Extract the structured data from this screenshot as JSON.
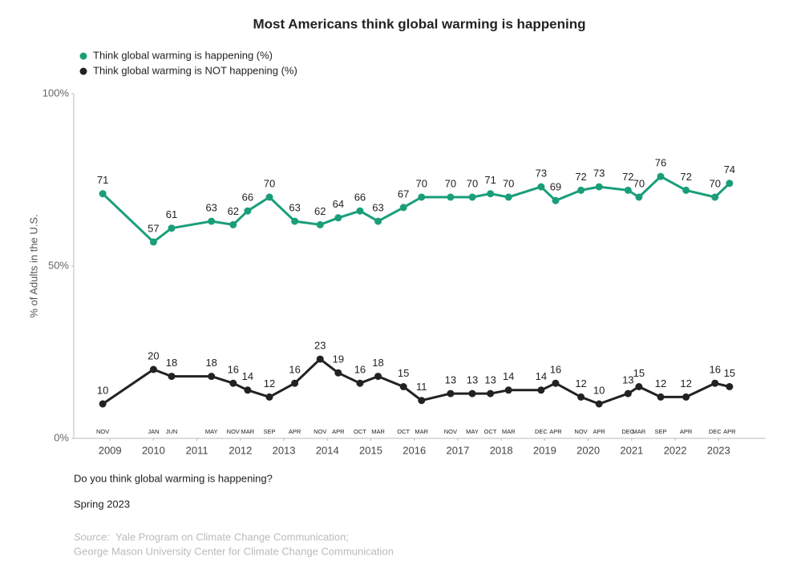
{
  "chart_data": {
    "type": "line",
    "title": "Most Americans think global warming is happening",
    "y_label": "% of Adults in the U.S.",
    "x": [
      "2008-11",
      "2010-01",
      "2010-06",
      "2011-05",
      "2011-11",
      "2012-03",
      "2012-09",
      "2013-04",
      "2013-11",
      "2014-04",
      "2014-10",
      "2015-03",
      "2015-10",
      "2016-03",
      "2016-11",
      "2017-05",
      "2017-10",
      "2018-03",
      "2018-12",
      "2019-04",
      "2019-11",
      "2020-04",
      "2020-12",
      "2021-03",
      "2021-09",
      "2022-04",
      "2022-12",
      "2023-04"
    ],
    "x_labels": [
      "NOV",
      "JAN",
      "JUN",
      "MAY",
      "NOV",
      "MAR",
      "SEP",
      "APR",
      "NOV",
      "APR",
      "OCT",
      "MAR",
      "OCT",
      "MAR",
      "NOV",
      "MAY",
      "OCT",
      "MAR",
      "DEC",
      "APR",
      "NOV",
      "APR",
      "DEC",
      "MAR",
      "SEP",
      "APR",
      "DEC",
      "APR"
    ],
    "series": [
      {
        "name": "Think global warming is happening (%)",
        "color": "#1a9e7a",
        "values": [
          71,
          57,
          61,
          63,
          62,
          66,
          70,
          63,
          62,
          64,
          66,
          63,
          67,
          70,
          70,
          70,
          71,
          70,
          73,
          69,
          72,
          73,
          72,
          70,
          76,
          72,
          70,
          74
        ]
      },
      {
        "name": "Think global warming is NOT happening (%)",
        "color": "#222222",
        "values": [
          10,
          20,
          18,
          18,
          16,
          14,
          12,
          16,
          23,
          19,
          16,
          18,
          15,
          11,
          13,
          13,
          13,
          14,
          14,
          16,
          12,
          10,
          13,
          15,
          12,
          12,
          16,
          15
        ]
      }
    ],
    "xlim": [
      "2008-03",
      "2024-02"
    ],
    "xticks": [
      {
        "value": "2009-01",
        "label": "2009"
      },
      {
        "value": "2010-01",
        "label": "2010"
      },
      {
        "value": "2011-01",
        "label": "2011"
      },
      {
        "value": "2012-01",
        "label": "2012"
      },
      {
        "value": "2013-01",
        "label": "2013"
      },
      {
        "value": "2014-01",
        "label": "2014"
      },
      {
        "value": "2015-01",
        "label": "2015"
      },
      {
        "value": "2016-01",
        "label": "2016"
      },
      {
        "value": "2017-01",
        "label": "2017"
      },
      {
        "value": "2018-01",
        "label": "2018"
      },
      {
        "value": "2019-01",
        "label": "2019"
      },
      {
        "value": "2020-01",
        "label": "2020"
      },
      {
        "value": "2021-01",
        "label": "2021"
      },
      {
        "value": "2022-01",
        "label": "2022"
      },
      {
        "value": "2023-01",
        "label": "2023"
      }
    ],
    "ylim": [
      0,
      100
    ],
    "yticks": [
      {
        "value": 0,
        "label": "0%"
      },
      {
        "value": 50,
        "label": "50%"
      },
      {
        "value": 100,
        "label": "100%"
      }
    ],
    "question": "Do you think global warming is happening?",
    "period": "Spring 2023",
    "source_label": "Source:",
    "source_lines": [
      "Yale Program on Climate Change Communication;",
      "George Mason University Center for Climate Change Communication"
    ]
  }
}
